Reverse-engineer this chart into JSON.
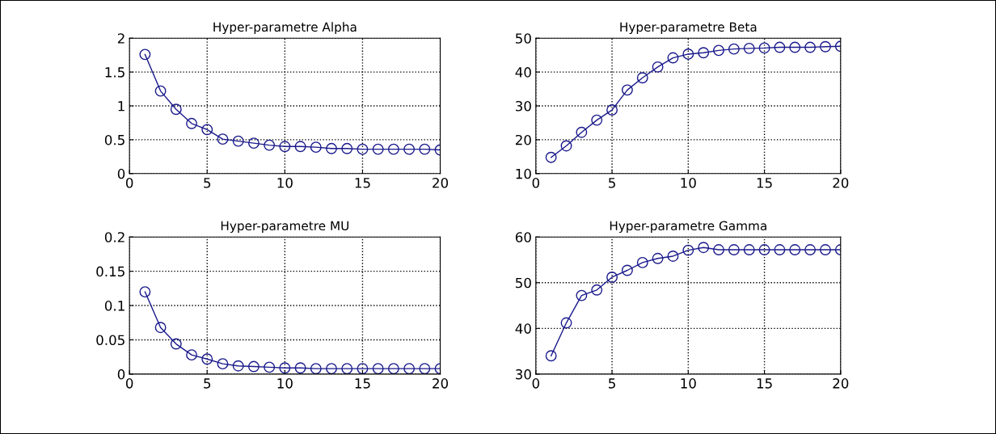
{
  "chart_data": [
    {
      "type": "line",
      "title": "Hyper-parametre Alpha",
      "x": [
        1,
        2,
        3,
        4,
        5,
        6,
        7,
        8,
        9,
        10,
        11,
        12,
        13,
        14,
        15,
        16,
        17,
        18,
        19,
        20
      ],
      "series": [
        {
          "color": "#1a1a8c",
          "values": [
            1.76,
            1.22,
            0.95,
            0.74,
            0.65,
            0.51,
            0.48,
            0.45,
            0.42,
            0.4,
            0.4,
            0.39,
            0.37,
            0.37,
            0.36,
            0.36,
            0.36,
            0.36,
            0.36,
            0.35
          ]
        }
      ],
      "xlim": [
        0,
        20
      ],
      "xticks": [
        0,
        5,
        10,
        15,
        20
      ],
      "ylim": [
        0,
        2
      ],
      "yticks": [
        0,
        0.5,
        1,
        1.5,
        2
      ],
      "grid": true,
      "marker": "circle",
      "line_style": "solid"
    },
    {
      "type": "line",
      "title": "Hyper-parametre Beta",
      "x": [
        1,
        2,
        3,
        4,
        5,
        6,
        7,
        8,
        9,
        10,
        11,
        12,
        13,
        14,
        15,
        16,
        17,
        18,
        19,
        20
      ],
      "series": [
        {
          "color": "#1a1a8c",
          "values": [
            14.8,
            18.2,
            22.2,
            25.8,
            28.8,
            34.7,
            38.3,
            41.5,
            44.2,
            45.3,
            45.7,
            46.4,
            46.8,
            47.0,
            47.1,
            47.3,
            47.3,
            47.3,
            47.5,
            47.6
          ]
        }
      ],
      "xlim": [
        0,
        20
      ],
      "xticks": [
        0,
        5,
        10,
        15,
        20
      ],
      "ylim": [
        10,
        50
      ],
      "yticks": [
        10,
        20,
        30,
        40,
        50
      ],
      "grid": true,
      "marker": "circle",
      "line_style": "solid"
    },
    {
      "type": "line",
      "title": "Hyper-parametre MU",
      "x": [
        1,
        2,
        3,
        4,
        5,
        6,
        7,
        8,
        9,
        10,
        11,
        12,
        13,
        14,
        15,
        16,
        17,
        18,
        19,
        20
      ],
      "series": [
        {
          "color": "#1a1a8c",
          "values": [
            0.12,
            0.068,
            0.044,
            0.028,
            0.022,
            0.015,
            0.012,
            0.011,
            0.01,
            0.009,
            0.009,
            0.008,
            0.008,
            0.008,
            0.008,
            0.008,
            0.008,
            0.008,
            0.008,
            0.008
          ]
        }
      ],
      "xlim": [
        0,
        20
      ],
      "xticks": [
        0,
        5,
        10,
        15,
        20
      ],
      "ylim": [
        0,
        0.2
      ],
      "yticks": [
        0,
        0.05,
        0.1,
        0.15,
        0.2
      ],
      "grid": true,
      "marker": "circle",
      "line_style": "solid"
    },
    {
      "type": "line",
      "title": "Hyper-parametre Gamma",
      "x": [
        1,
        2,
        3,
        4,
        5,
        6,
        7,
        8,
        9,
        10,
        11,
        12,
        13,
        14,
        15,
        16,
        17,
        18,
        19,
        20
      ],
      "series": [
        {
          "color": "#1a1a8c",
          "values": [
            34,
            41.2,
            47.2,
            48.4,
            51.2,
            52.7,
            54.4,
            55.3,
            55.8,
            57.1,
            57.7,
            57.2,
            57.2,
            57.2,
            57.2,
            57.2,
            57.2,
            57.2,
            57.2,
            57.2
          ]
        }
      ],
      "xlim": [
        0,
        20
      ],
      "xticks": [
        0,
        5,
        10,
        15,
        20
      ],
      "ylim": [
        30,
        60
      ],
      "yticks": [
        30,
        40,
        50,
        60
      ],
      "grid": true,
      "marker": "circle",
      "line_style": "solid"
    }
  ]
}
